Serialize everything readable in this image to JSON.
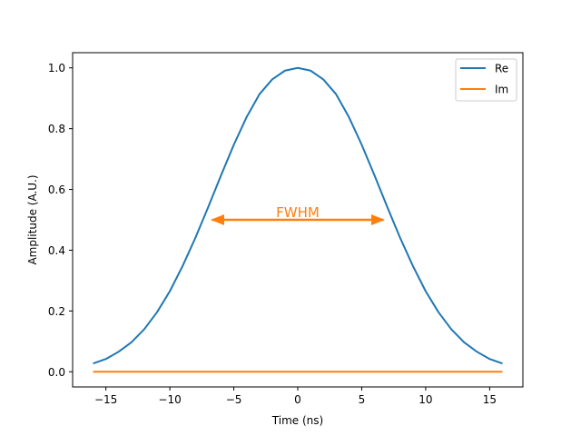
{
  "chart_data": {
    "type": "line",
    "xlabel": "Time (ns)",
    "ylabel": "Amplitude (A.U.)",
    "xlim": [
      -17.6,
      17.6
    ],
    "ylim": [
      -0.05,
      1.05
    ],
    "xticks": [
      -15,
      -10,
      -5,
      0,
      5,
      10,
      15
    ],
    "xtick_labels": [
      "−15",
      "−10",
      "−5",
      "0",
      "5",
      "10",
      "15"
    ],
    "yticks": [
      0.0,
      0.2,
      0.4,
      0.6,
      0.8,
      1.0
    ],
    "ytick_labels": [
      "0.0",
      "0.2",
      "0.4",
      "0.6",
      "0.8",
      "1.0"
    ],
    "grid": false,
    "legend_position": "top-right",
    "series": [
      {
        "name": "Re",
        "color": "#1f77b4",
        "x": [
          -16,
          -15,
          -14,
          -13,
          -12,
          -11,
          -10,
          -9,
          -8,
          -7,
          -6,
          -5,
          -4,
          -3,
          -2,
          -1,
          0,
          1,
          2,
          3,
          4,
          5,
          6,
          7,
          8,
          9,
          10,
          11,
          12,
          13,
          14,
          15,
          16
        ],
        "y": [
          0.027,
          0.042,
          0.066,
          0.097,
          0.14,
          0.196,
          0.265,
          0.348,
          0.441,
          0.542,
          0.646,
          0.747,
          0.838,
          0.913,
          0.962,
          0.991,
          1.0,
          0.991,
          0.962,
          0.913,
          0.838,
          0.747,
          0.646,
          0.542,
          0.441,
          0.348,
          0.265,
          0.196,
          0.14,
          0.097,
          0.066,
          0.042,
          0.027
        ]
      },
      {
        "name": "Im",
        "color": "#ff7f0e",
        "x": [
          -16,
          16
        ],
        "y": [
          0.0,
          0.0
        ]
      }
    ],
    "annotation": {
      "text": "FWHM",
      "color": "#ff7f0e",
      "y": 0.5,
      "x_start": -6.7,
      "x_end": 6.7
    }
  }
}
